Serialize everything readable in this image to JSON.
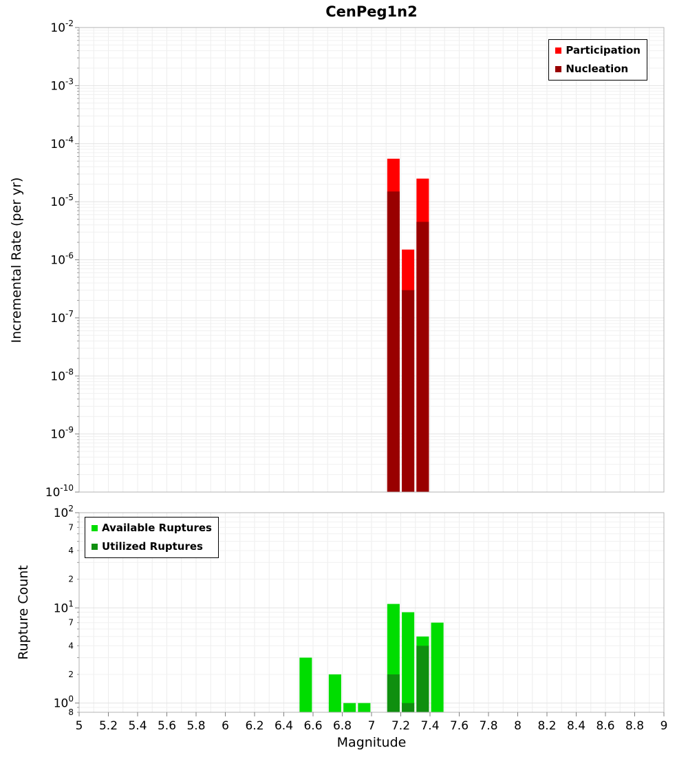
{
  "title": "CenPeg1n2",
  "chart_data": [
    {
      "type": "bar",
      "panel": "incremental-rate",
      "title": "CenPeg1n2",
      "xlabel": "Magnitude",
      "ylabel": "Incremental Rate (per yr)",
      "xlim": [
        5,
        9
      ],
      "ylim": [
        1e-10,
        0.01
      ],
      "y_scale": "log",
      "grid": true,
      "x_ticks": [
        5,
        5.2,
        5.4,
        5.6,
        5.8,
        6,
        6.2,
        6.4,
        6.6,
        6.8,
        7,
        7.2,
        7.4,
        7.6,
        7.8,
        8,
        8.2,
        8.4,
        8.6,
        8.8,
        9
      ],
      "x_tick_labels_visible": false,
      "y_major_exponents": [
        -2,
        -3,
        -4,
        -5,
        -6,
        -7,
        -8,
        -9,
        -10
      ],
      "legend_position": "top-right",
      "bar_width": 0.085,
      "series": [
        {
          "name": "Participation",
          "color": "#ff0000",
          "x": [
            7.15,
            7.25,
            7.35
          ],
          "values": [
            5.5e-05,
            1.5e-06,
            2.5e-05
          ]
        },
        {
          "name": "Nucleation",
          "color": "#990000",
          "x": [
            7.15,
            7.25,
            7.35
          ],
          "values": [
            1.5e-05,
            3e-07,
            4.5e-06
          ]
        }
      ]
    },
    {
      "type": "bar",
      "panel": "rupture-count",
      "xlabel": "Magnitude",
      "ylabel": "Rupture Count",
      "xlim": [
        5,
        9
      ],
      "ylim": [
        0.8,
        100
      ],
      "y_scale": "log",
      "grid": true,
      "x_ticks": [
        5,
        5.2,
        5.4,
        5.6,
        5.8,
        6,
        6.2,
        6.4,
        6.6,
        6.8,
        7,
        7.2,
        7.4,
        7.6,
        7.8,
        8,
        8.2,
        8.4,
        8.6,
        8.8,
        9
      ],
      "x_tick_labels_visible": true,
      "y_major_exponents": [
        2,
        1,
        0
      ],
      "y_minor_labels": [
        {
          "value": 70,
          "label": "7"
        },
        {
          "value": 40,
          "label": "4"
        },
        {
          "value": 20,
          "label": "2"
        },
        {
          "value": 7,
          "label": "7"
        },
        {
          "value": 4,
          "label": "4"
        },
        {
          "value": 2,
          "label": "2"
        },
        {
          "value": 0.8,
          "label": "8"
        }
      ],
      "legend_position": "top-left",
      "bar_width": 0.085,
      "series": [
        {
          "name": "Available Ruptures",
          "color": "#00dd00",
          "x": [
            6.55,
            6.75,
            6.85,
            6.95,
            7.15,
            7.25,
            7.35,
            7.45
          ],
          "values": [
            3,
            2,
            1,
            1,
            11,
            9,
            5,
            7
          ]
        },
        {
          "name": "Utilized Ruptures",
          "color": "#0f8f0f",
          "x": [
            7.15,
            7.25,
            7.35
          ],
          "values": [
            2,
            1,
            4
          ]
        }
      ]
    }
  ]
}
